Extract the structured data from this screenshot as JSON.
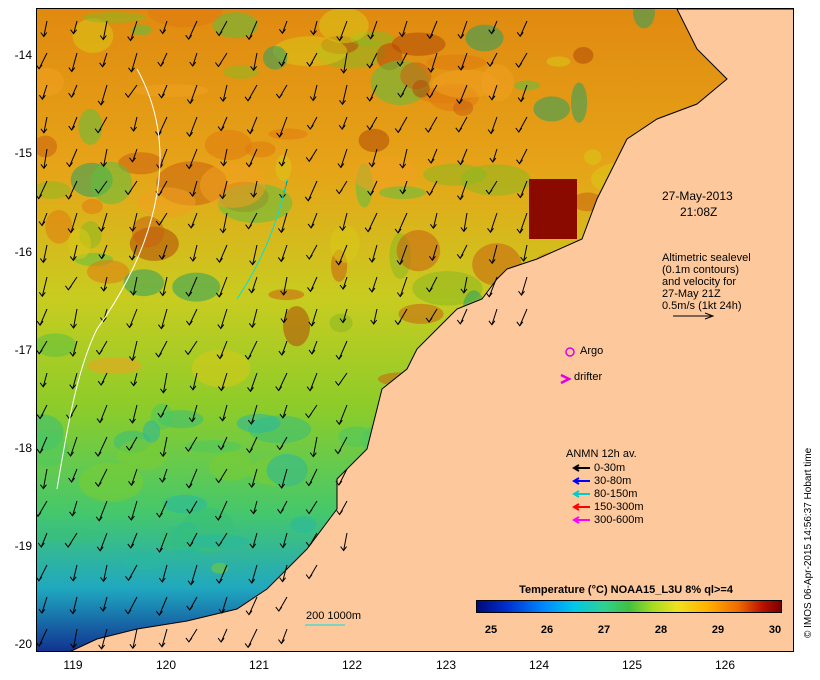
{
  "map": {
    "date_label": "27-May-2013",
    "time_label": "21:08Z",
    "altimetry_note": [
      "Altimetric sealevel",
      "(0.1m contours)",
      "and velocity for",
      "27-May 21Z",
      "0.5m/s (1kt 24h)"
    ],
    "argo_label": "Argo",
    "drifter_label": "drifter",
    "anmn_title": "ANMN 12h av.",
    "anmn_depths": [
      {
        "label": "0-30m",
        "color": "#000000"
      },
      {
        "label": "30-80m",
        "color": "#0000ff"
      },
      {
        "label": "80-150m",
        "color": "#00cccc"
      },
      {
        "label": "150-300m",
        "color": "#ff0000"
      },
      {
        "label": "300-600m",
        "color": "#ff00ff"
      }
    ],
    "isobath_label": "200  1000m",
    "y_ticks": [
      "-14",
      "-15",
      "-16",
      "-17",
      "-18",
      "-19",
      "-20"
    ],
    "x_ticks": [
      "119",
      "120",
      "121",
      "122",
      "123",
      "124",
      "125",
      "126"
    ],
    "colorbar": {
      "title": "Temperature (°C) NOAA15_L3U 8% ql>=4",
      "ticks": [
        "25",
        "26",
        "27",
        "28",
        "29",
        "30"
      ]
    },
    "timestamp": "© IMOS 06-Apr-2015 14:56:37 Hobart time",
    "colors": {
      "land": "#fdc99c",
      "argo": "#e000e0",
      "drifter": "#e000e0"
    }
  }
}
